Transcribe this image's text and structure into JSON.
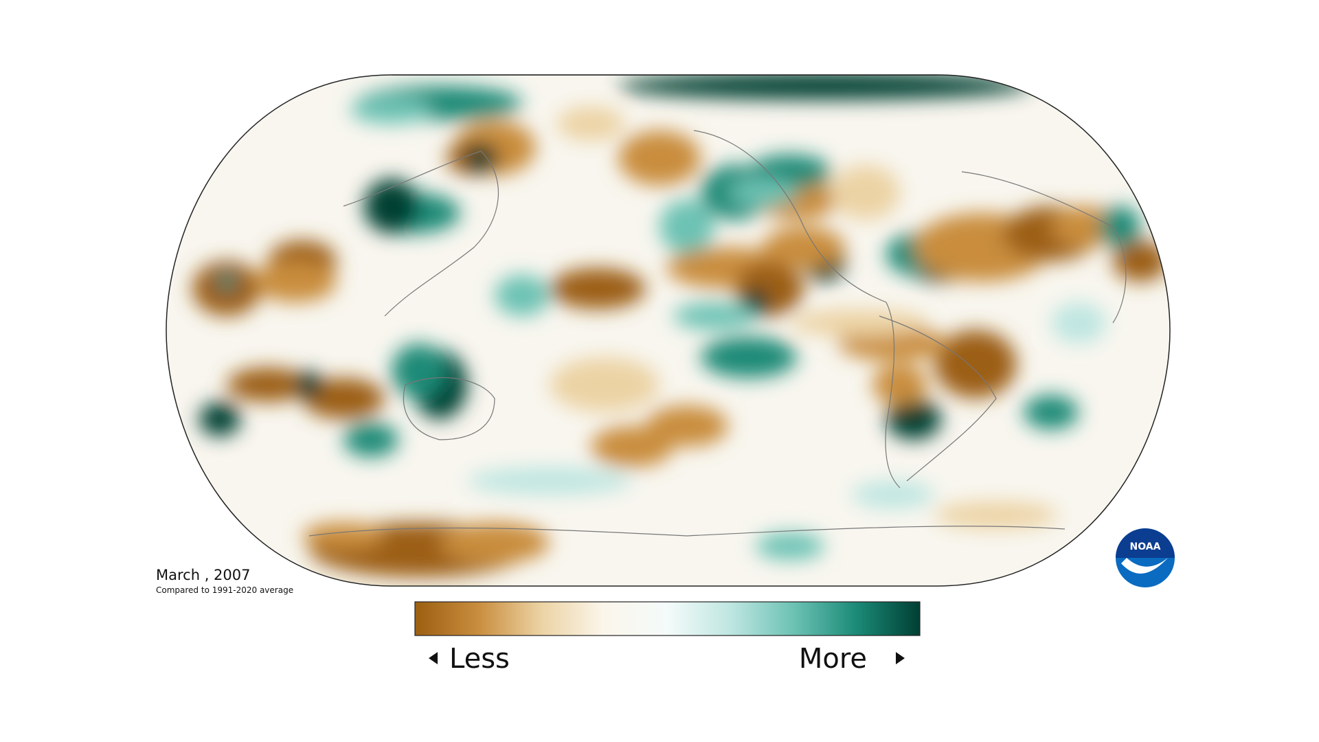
{
  "map": {
    "date_label": "March , 2007",
    "subtitle": "Compared to 1991-2020 average",
    "legend": {
      "low_label": "Less",
      "high_label": "More",
      "colors": [
        "#9c5f12",
        "#c98d3e",
        "#ecd3a4",
        "#fbf6ec",
        "#f4fbfa",
        "#bfe6e1",
        "#6cc2b4",
        "#1b8a77",
        "#003f33"
      ]
    },
    "logo": {
      "text": "NOAA"
    }
  }
}
